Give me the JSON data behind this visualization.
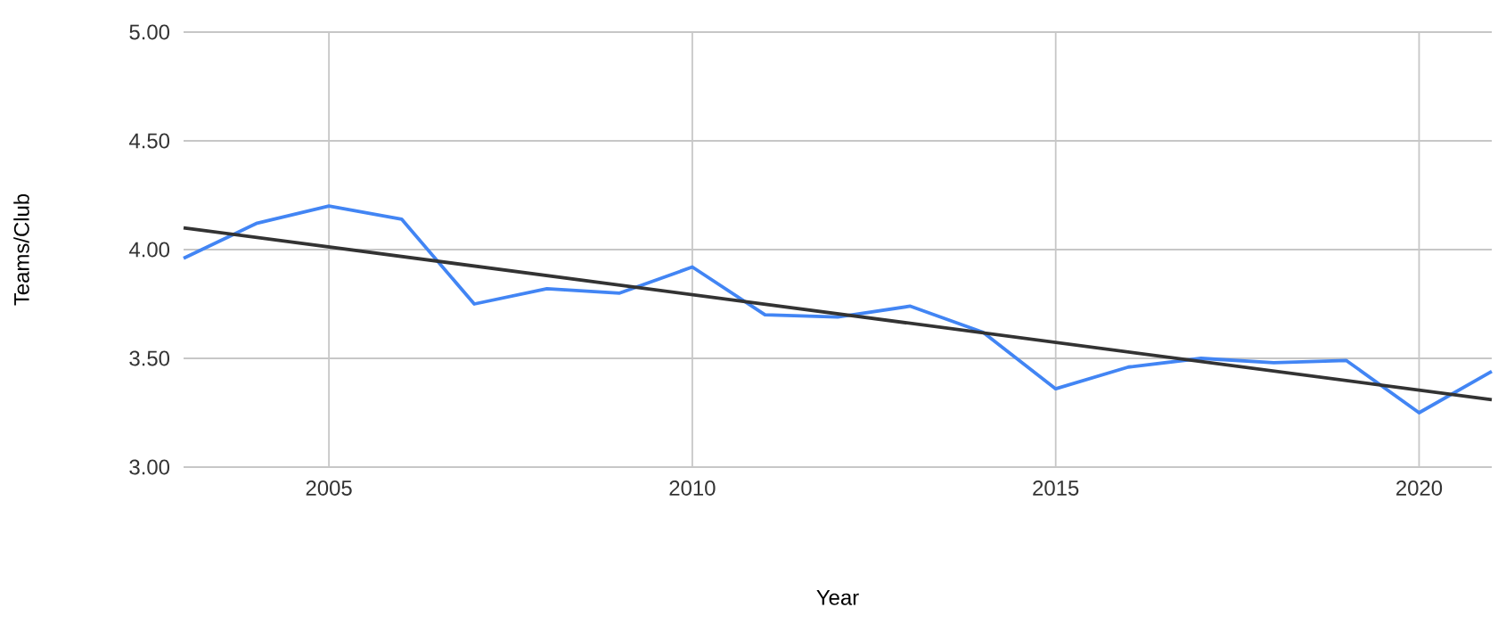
{
  "chart_data": {
    "type": "line",
    "xlabel": "Year",
    "ylabel": "Teams/Club",
    "x": [
      2003,
      2004,
      2005,
      2006,
      2007,
      2008,
      2009,
      2010,
      2011,
      2012,
      2013,
      2014,
      2015,
      2016,
      2017,
      2018,
      2019,
      2020,
      2021
    ],
    "series": [
      {
        "color": "#4285f4",
        "values": [
          3.96,
          4.12,
          4.2,
          4.14,
          3.75,
          3.82,
          3.8,
          3.92,
          3.7,
          3.69,
          3.74,
          3.62,
          3.36,
          3.46,
          3.5,
          3.48,
          3.49,
          3.25,
          3.44
        ]
      },
      {
        "type": "line",
        "color": "#333333",
        "x": [
          2003,
          2021
        ],
        "values": [
          4.1,
          3.31
        ]
      }
    ],
    "xlim": [
      2003,
      2021
    ],
    "xticks": [
      2005,
      2010,
      2015,
      2020
    ],
    "ylim": [
      3,
      5
    ],
    "yticks": [
      {
        "value": 3,
        "label": "3.00"
      },
      {
        "value": 3.5,
        "label": "3.50"
      },
      {
        "value": 4,
        "label": "4.00"
      },
      {
        "value": 4.5,
        "label": "4.50"
      },
      {
        "value": 5,
        "label": "5.00"
      }
    ],
    "grid": true,
    "marker": "none",
    "line_style": "solid"
  }
}
